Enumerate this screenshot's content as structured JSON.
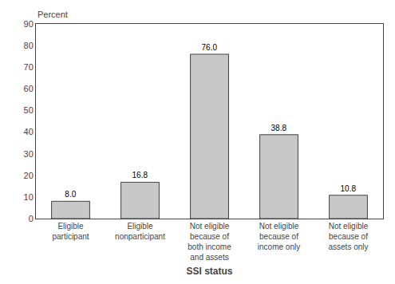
{
  "chart_data": {
    "type": "bar",
    "categories": [
      "Eligible\nparticipant",
      "Eligible\nnonparticipant",
      "Not eligible\nbecause of\nboth income\nand assets",
      "Not eligible\nbecause of\nincome only",
      "Not eligible\nbecause of\nassets only"
    ],
    "values": [
      8.0,
      16.8,
      76.0,
      38.8,
      10.8
    ],
    "value_labels": [
      "8.0",
      "16.8",
      "76.0",
      "38.8",
      "10.8"
    ],
    "data_labels": true,
    "color": "#c8c8c8",
    "xlabel": "SSI status",
    "ylabel": "Percent",
    "ylim": [
      0,
      90
    ],
    "yticks": [
      0,
      10,
      20,
      30,
      40,
      50,
      60,
      70,
      80,
      90
    ],
    "grid": false
  }
}
